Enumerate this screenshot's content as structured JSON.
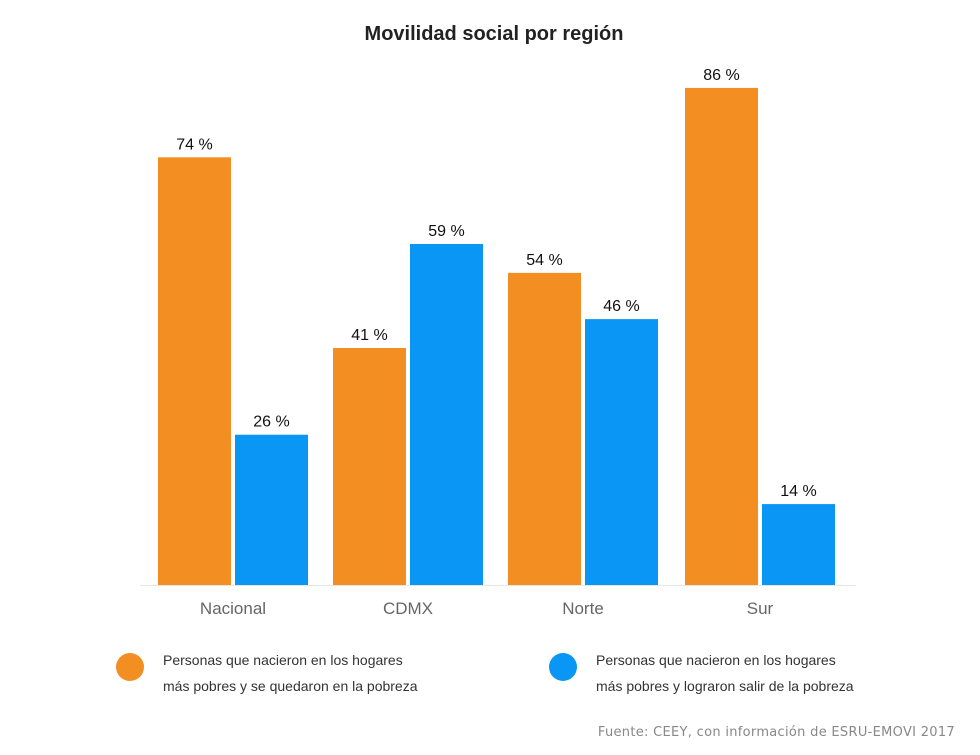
{
  "chart_data": {
    "type": "bar",
    "title": "Movilidad social por región",
    "categories": [
      "Nacional",
      "CDMX",
      "Norte",
      "Sur"
    ],
    "series": [
      {
        "name": "Personas que nacieron en los hogares más pobres y se quedaron en la pobreza",
        "legend_lines": [
          "Personas que nacieron en los hogares",
          "más pobres y se quedaron en la pobreza"
        ],
        "color": "#F28E22",
        "values": [
          74,
          41,
          54,
          86
        ]
      },
      {
        "name": "Personas que nacieron en los hogares más pobres y lograron salir de la pobreza",
        "legend_lines": [
          "Personas que nacieron en los hogares",
          "más pobres y lograron salir de la pobreza"
        ],
        "color": "#0A96F5",
        "values": [
          26,
          59,
          46,
          14
        ]
      }
    ],
    "value_suffix": " %",
    "ylim": [
      0,
      100
    ],
    "grid": false,
    "legend_placement": "bottom",
    "xlabel": "",
    "ylabel": "",
    "source": "Fuente: CEEY, con información de ESRU-EMOVI 2017"
  }
}
